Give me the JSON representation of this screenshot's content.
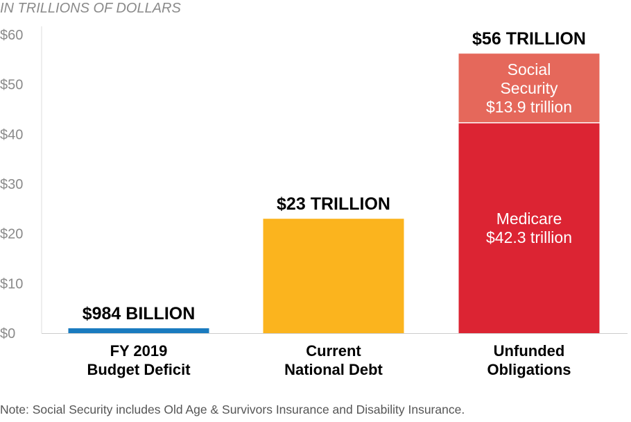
{
  "chart_data": {
    "type": "bar",
    "stacked": true,
    "unit_label": "IN TRILLIONS OF DOLLARS",
    "ylim": [
      0,
      60
    ],
    "y_ticks": [
      "$0",
      "$10",
      "$20",
      "$30",
      "$40",
      "$50",
      "$60"
    ],
    "y_tick_values": [
      0,
      10,
      20,
      30,
      40,
      50,
      60
    ],
    "grid": false,
    "categories": [
      {
        "lines": [
          "FY 2019",
          "Budget Deficit"
        ],
        "total_label": "$984 BILLION"
      },
      {
        "lines": [
          "Current",
          "National Debt"
        ],
        "total_label": "$23 TRILLION"
      },
      {
        "lines": [
          "Unfunded",
          "Obligations"
        ],
        "total_label": "$56 TRILLION"
      }
    ],
    "segments": [
      [
        {
          "value": 0.984,
          "color": "#1a7bbf",
          "label_lines": []
        }
      ],
      [
        {
          "value": 23,
          "color": "#fbb41e",
          "label_lines": []
        }
      ],
      [
        {
          "value": 42.3,
          "color": "#dc2433",
          "label_lines": [
            "Medicare",
            "$42.3 trillion"
          ]
        },
        {
          "value": 13.9,
          "color": "#e5685b",
          "label_lines": [
            "Social",
            "Security",
            "$13.9 trillion"
          ]
        }
      ]
    ],
    "note": "Note: Social Security includes Old Age & Survivors Insurance and Disability Insurance."
  }
}
